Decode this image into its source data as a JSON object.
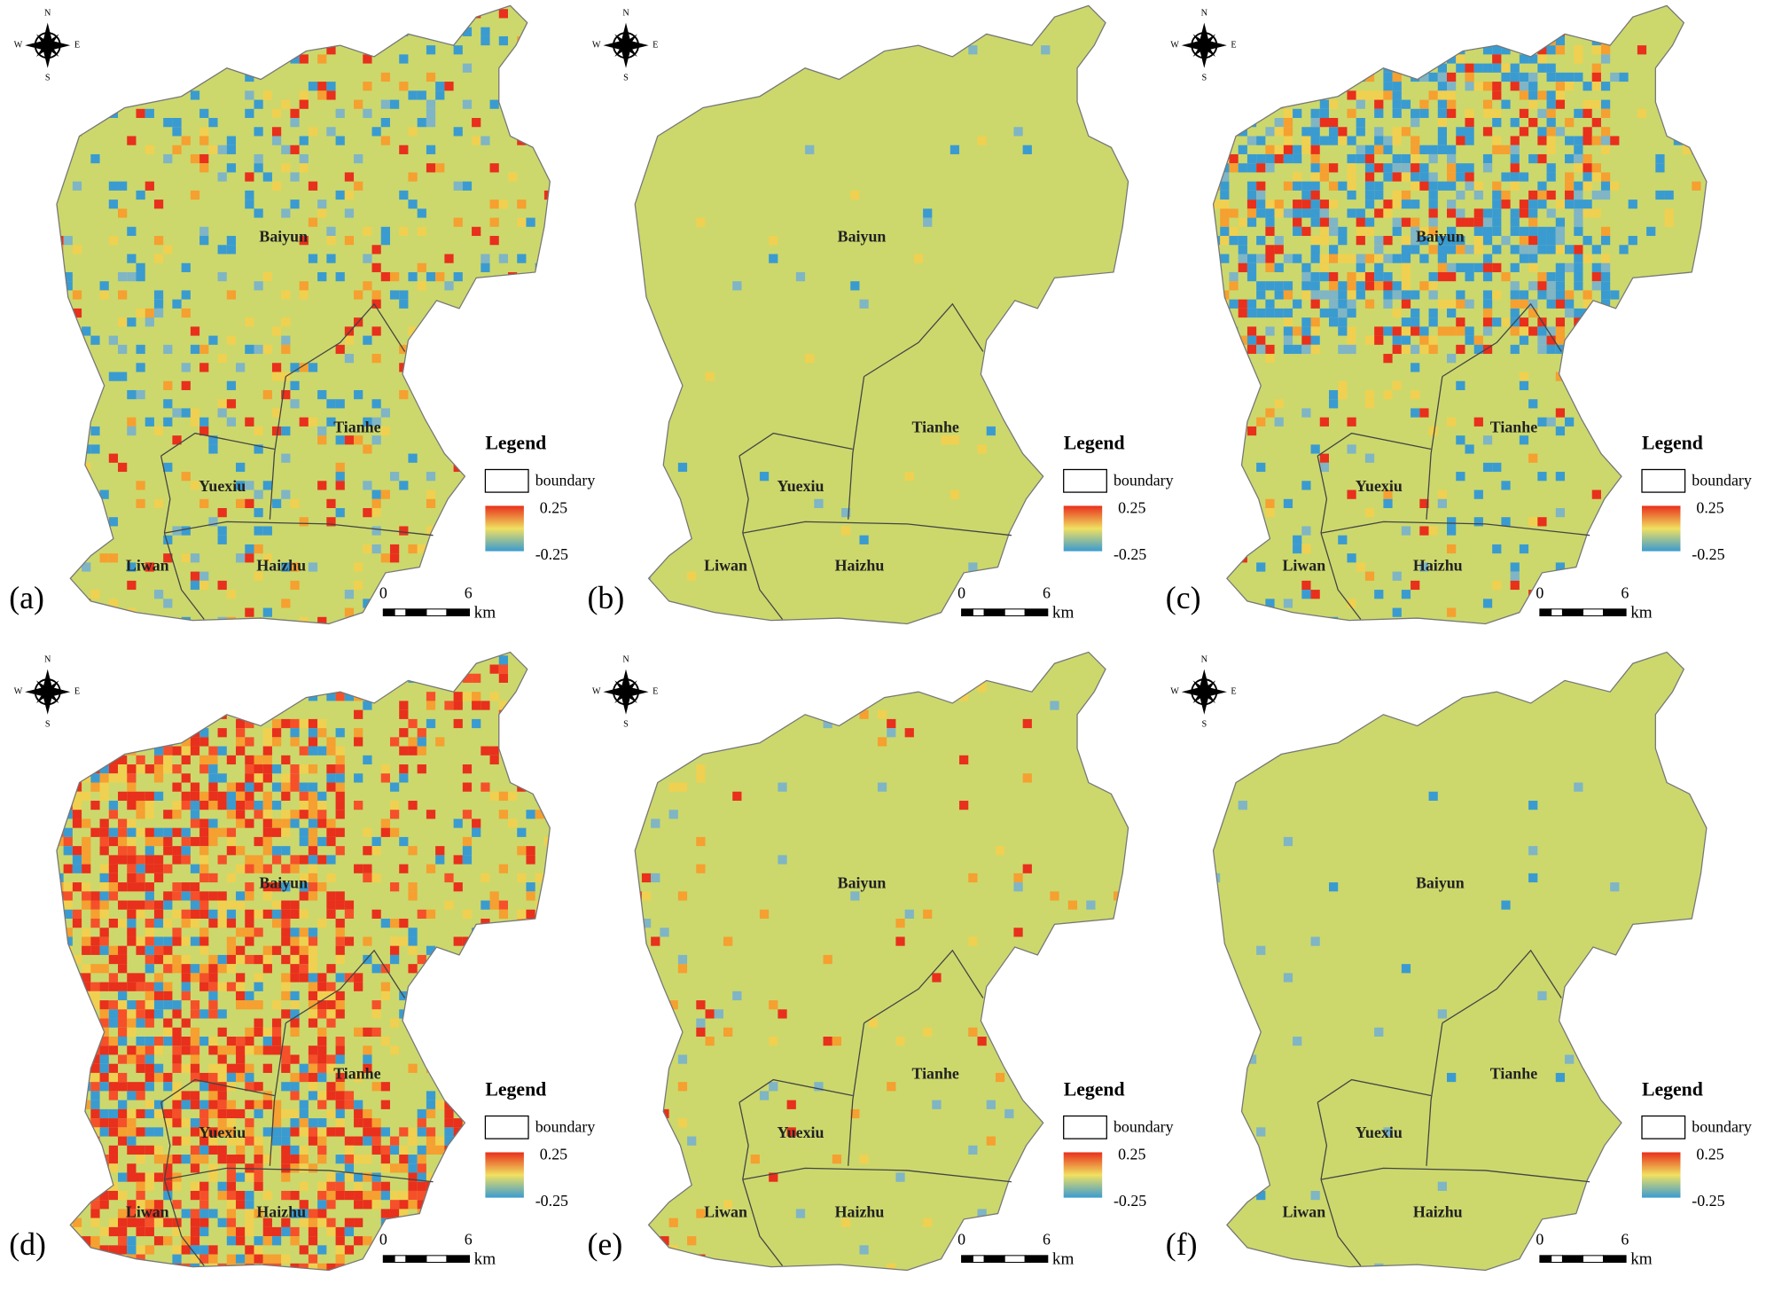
{
  "panels": [
    {
      "label": "(a)"
    },
    {
      "label": "(b)"
    },
    {
      "label": "(c)"
    },
    {
      "label": "(d)"
    },
    {
      "label": "(e)"
    },
    {
      "label": "(f)"
    }
  ],
  "districts": [
    "Baiyun",
    "Tianhe",
    "Yuexiu",
    "Liwan",
    "Haizhu"
  ],
  "legend": {
    "title": "Legend",
    "boundary": "boundary",
    "max": "0.25",
    "min": "-0.25"
  },
  "scale_bar": {
    "start": "0",
    "end": "6",
    "unit": "km"
  },
  "compass": {
    "n": "N",
    "s": "S",
    "e": "E",
    "w": "W"
  }
}
